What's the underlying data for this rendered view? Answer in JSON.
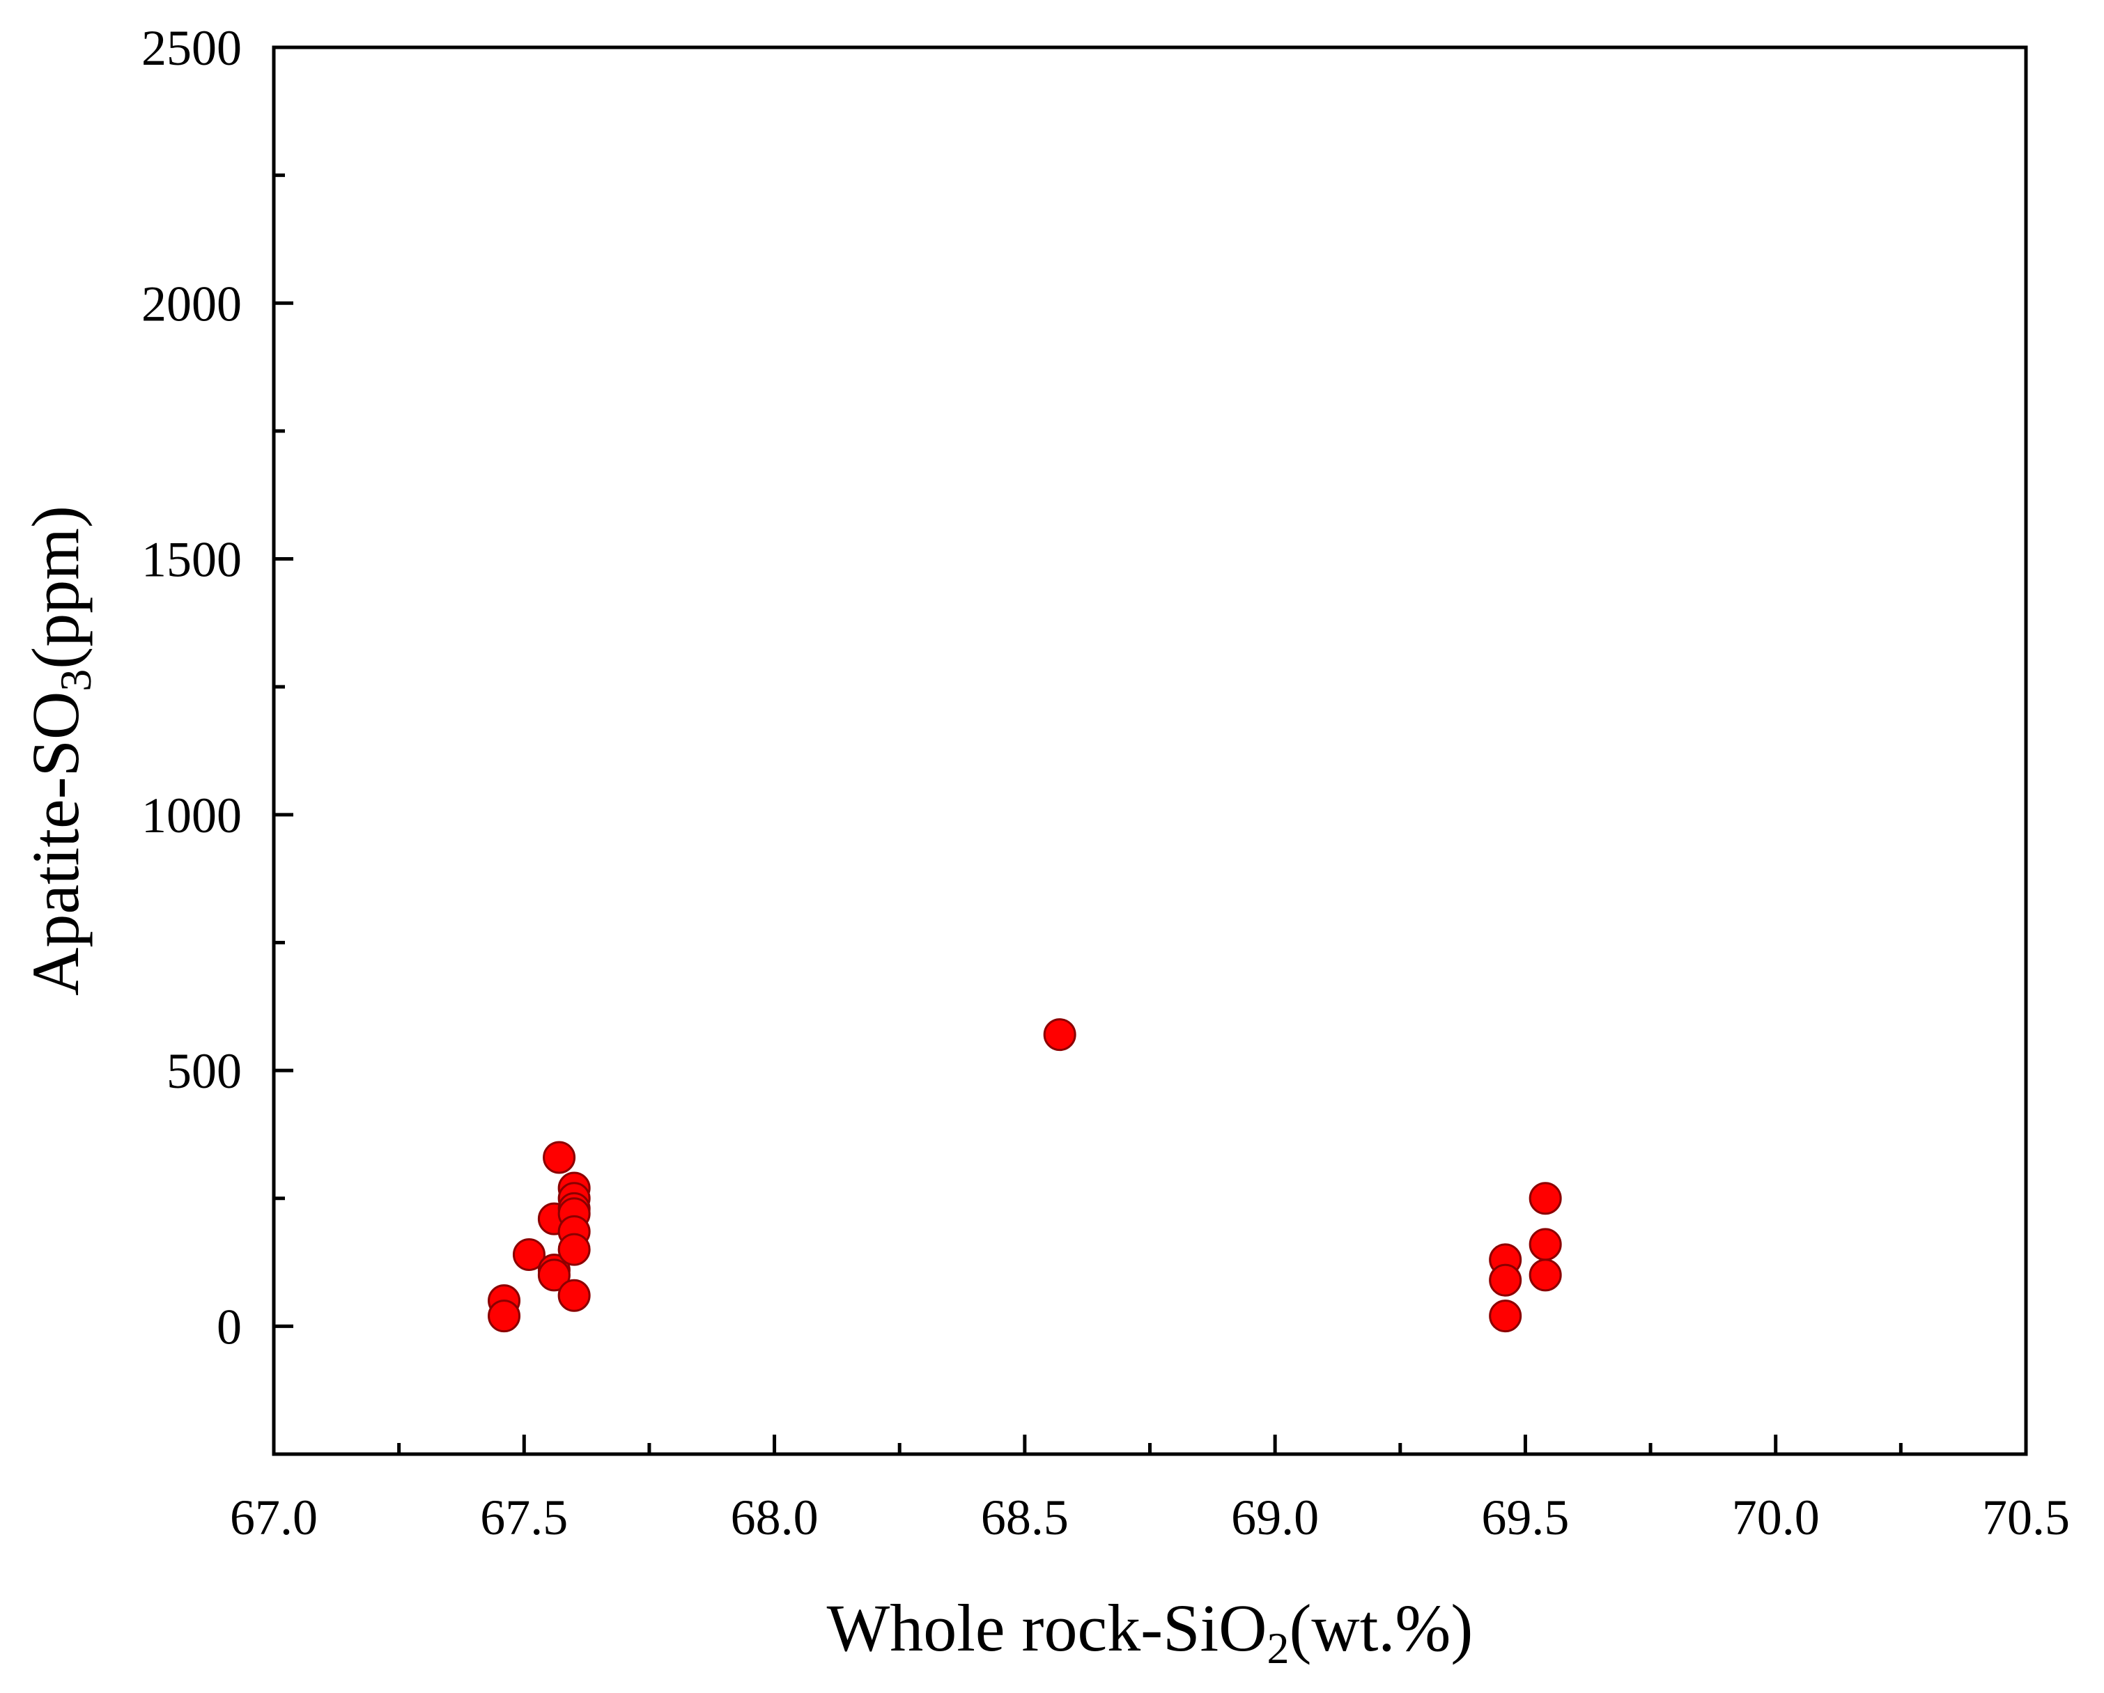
{
  "chart_data": {
    "type": "scatter",
    "xlabel": {
      "main": "Whole rock-SiO",
      "sub": "2",
      "after": "(wt.%)"
    },
    "ylabel": {
      "main": "Apatite-SO",
      "sub": "3",
      "after": "(ppm)"
    },
    "xlim": [
      67.0,
      70.5
    ],
    "ylim": [
      -250,
      2500
    ],
    "xticks": [
      67.0,
      67.5,
      68.0,
      68.5,
      69.0,
      69.5,
      70.0,
      70.5
    ],
    "xtick_labels": [
      "67.0",
      "67.5",
      "68.0",
      "68.5",
      "69.0",
      "69.5",
      "70.0",
      "70.5"
    ],
    "yticks": [
      0,
      500,
      1000,
      1500,
      2000,
      2500
    ],
    "ytick_labels": [
      "0",
      "500",
      "1000",
      "1500",
      "2000",
      "2500"
    ],
    "grid": false,
    "legend": "none",
    "marker_color": "#ff0000",
    "marker_edge": "#8b0000",
    "series": [
      {
        "points": [
          {
            "x": 67.46,
            "y": 50
          },
          {
            "x": 67.46,
            "y": 20
          },
          {
            "x": 67.51,
            "y": 140
          },
          {
            "x": 67.56,
            "y": 110
          },
          {
            "x": 67.56,
            "y": 100
          },
          {
            "x": 67.56,
            "y": 210
          },
          {
            "x": 67.57,
            "y": 330
          },
          {
            "x": 67.6,
            "y": 270
          },
          {
            "x": 67.6,
            "y": 250
          },
          {
            "x": 67.6,
            "y": 230
          },
          {
            "x": 67.6,
            "y": 220
          },
          {
            "x": 67.6,
            "y": 185
          },
          {
            "x": 67.6,
            "y": 150
          },
          {
            "x": 67.6,
            "y": 60
          },
          {
            "x": 68.57,
            "y": 570
          },
          {
            "x": 69.46,
            "y": 130
          },
          {
            "x": 69.46,
            "y": 90
          },
          {
            "x": 69.46,
            "y": 20
          },
          {
            "x": 69.54,
            "y": 250
          },
          {
            "x": 69.54,
            "y": 160
          },
          {
            "x": 69.54,
            "y": 100
          }
        ]
      }
    ]
  }
}
